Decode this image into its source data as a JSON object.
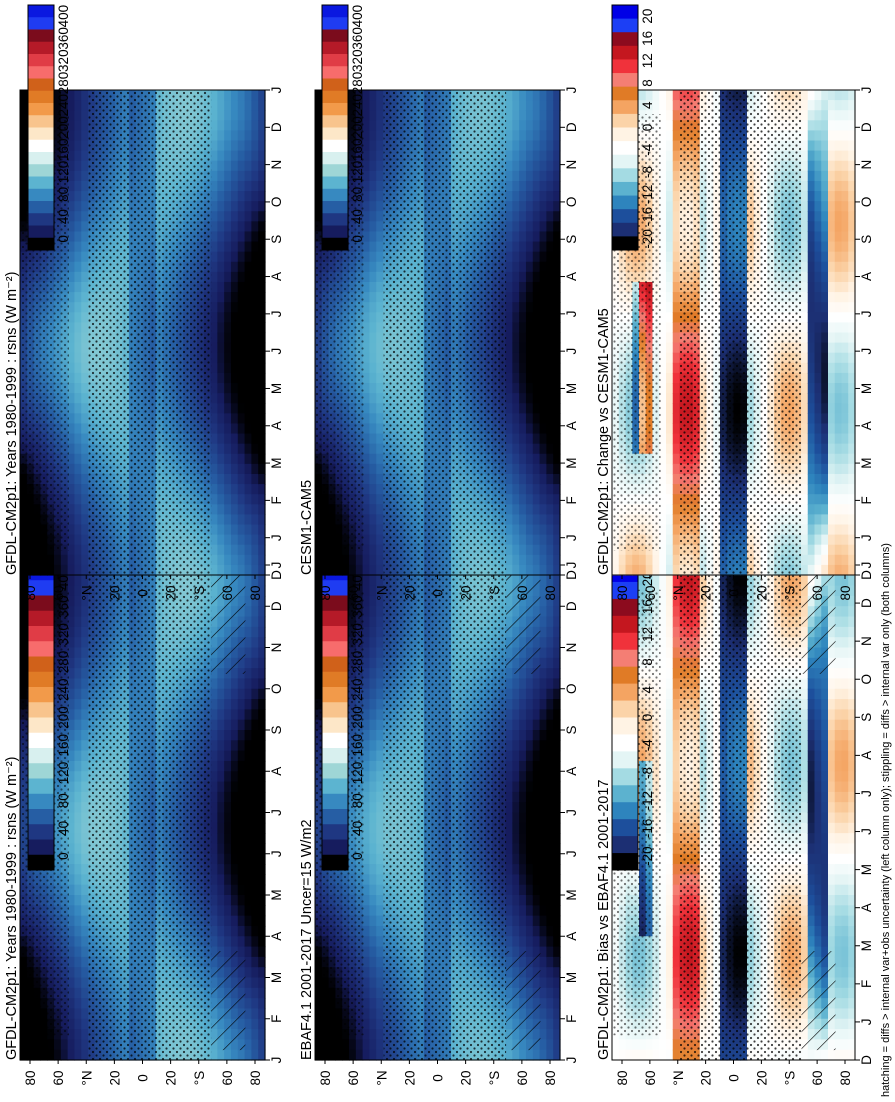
{
  "caption": "hatching = diffs > internal var+obs uncertainty (left column only); stippling = diffs > internal var only (both columns)",
  "colors": {
    "abs_palette": [
      "#0a18e0",
      "#1f3cf2",
      "#7b0c1c",
      "#b51a28",
      "#e03c46",
      "#f76c6c",
      "#d0611a",
      "#e07b26",
      "#f29a4a",
      "#f8c48d",
      "#fde7c8",
      "#ffffff",
      "#d8f0ef",
      "#9ed6d6",
      "#5cb4d0",
      "#3789c0",
      "#265ea4",
      "#1f3782",
      "#161c5e",
      "#000000"
    ],
    "diff_palette": [
      "#0000e6",
      "#1c3ff5",
      "#8c0b1e",
      "#c4171f",
      "#f0323b",
      "#f47e74",
      "#e07b26",
      "#f4a462",
      "#fbd3a8",
      "#fff3e4",
      "#ffffff",
      "#e4f5f5",
      "#a4dbe3",
      "#5cb2cf",
      "#2e84bd",
      "#1d4f9c",
      "#1c2f73",
      "#000000"
    ]
  },
  "chart_data": [
    {
      "type": "heatmap",
      "title": "GFDL-CM2p1: Years 1980-1999 : rsns (W m⁻²)",
      "x_categories": [
        "J",
        "F",
        "M",
        "A",
        "M",
        "J",
        "J",
        "A",
        "S",
        "O",
        "N",
        "D",
        "J"
      ],
      "y_ticks": [
        "80",
        "60",
        "°N",
        "20",
        "0",
        "20",
        "°S",
        "60",
        "80"
      ],
      "ylim": [
        -90,
        90
      ],
      "colorbar": [
        "400",
        "360",
        "320",
        "280",
        "240",
        "200",
        "160",
        "120",
        "80",
        "40",
        "0"
      ],
      "hatching": true,
      "stippling": true
    },
    {
      "type": "heatmap",
      "title": "EBAF4.1 2001-2017 Uncer=15 W/m2",
      "x_categories": [
        "J",
        "F",
        "M",
        "A",
        "M",
        "J",
        "J",
        "A",
        "S",
        "O",
        "N",
        "D",
        "J"
      ],
      "y_ticks": [
        "80",
        "60",
        "°N",
        "20",
        "0",
        "20",
        "°S",
        "60",
        "80"
      ],
      "ylim": [
        -90,
        90
      ],
      "colorbar": [
        "400",
        "360",
        "320",
        "280",
        "240",
        "200",
        "160",
        "120",
        "80",
        "40",
        "0"
      ],
      "hatching": true,
      "stippling": true
    },
    {
      "type": "heatmap",
      "title": "GFDL-CM2p1: Bias vs EBAF4.1 2001-2017",
      "x_categories": [
        "D",
        "J",
        "F",
        "M",
        "A",
        "M",
        "J",
        "J",
        "A",
        "S",
        "O",
        "N",
        "D",
        "J"
      ],
      "y_ticks": [
        "80",
        "60",
        "°N",
        "20",
        "0",
        "20",
        "°S",
        "60",
        "80"
      ],
      "ylim": [
        -90,
        90
      ],
      "colorbar": [
        "20",
        "16",
        "12",
        "8",
        "4",
        "0",
        "-4",
        "-8",
        "-12",
        "-16",
        "-20"
      ],
      "hatching": true,
      "stippling": true
    },
    {
      "type": "heatmap",
      "title": "GFDL-CM2p1: Years 1980-1999 : rsns (W m⁻²)",
      "x_categories": [
        "D",
        "J",
        "F",
        "M",
        "A",
        "M",
        "J",
        "J",
        "A",
        "S",
        "O",
        "N",
        "D",
        "J"
      ],
      "y_ticks": [
        "80",
        "60",
        "°N",
        "20",
        "0",
        "20",
        "°S",
        "60",
        "80"
      ],
      "ylim": [
        -90,
        90
      ],
      "colorbar": [
        "400",
        "360",
        "320",
        "280",
        "240",
        "200",
        "160",
        "120",
        "80",
        "40",
        "0"
      ],
      "hatching": false,
      "stippling": true
    },
    {
      "type": "heatmap",
      "title": "CESM1-CAM5",
      "x_categories": [
        "D",
        "J",
        "F",
        "M",
        "A",
        "M",
        "J",
        "J",
        "A",
        "S",
        "O",
        "N",
        "D",
        "J"
      ],
      "y_ticks": [
        "80",
        "60",
        "°N",
        "20",
        "0",
        "20",
        "°S",
        "60",
        "80"
      ],
      "ylim": [
        -90,
        90
      ],
      "colorbar": [
        "400",
        "360",
        "320",
        "280",
        "240",
        "200",
        "160",
        "120",
        "80",
        "40",
        "0"
      ],
      "hatching": false,
      "stippling": true
    },
    {
      "type": "heatmap",
      "title": "GFDL-CM2p1: Change vs CESM1-CAM5",
      "x_categories": [
        "D",
        "J",
        "F",
        "M",
        "A",
        "M",
        "J",
        "J",
        "A",
        "S",
        "O",
        "N",
        "D",
        "J"
      ],
      "y_ticks": [
        "80",
        "60",
        "°N",
        "20",
        "0",
        "20",
        "°S",
        "60",
        "80"
      ],
      "ylim": [
        -90,
        90
      ],
      "colorbar": [
        "20",
        "16",
        "12",
        "8",
        "4",
        "0",
        "-4",
        "-8",
        "-12",
        "-16",
        "-20"
      ],
      "hatching": false,
      "stippling": true
    }
  ]
}
